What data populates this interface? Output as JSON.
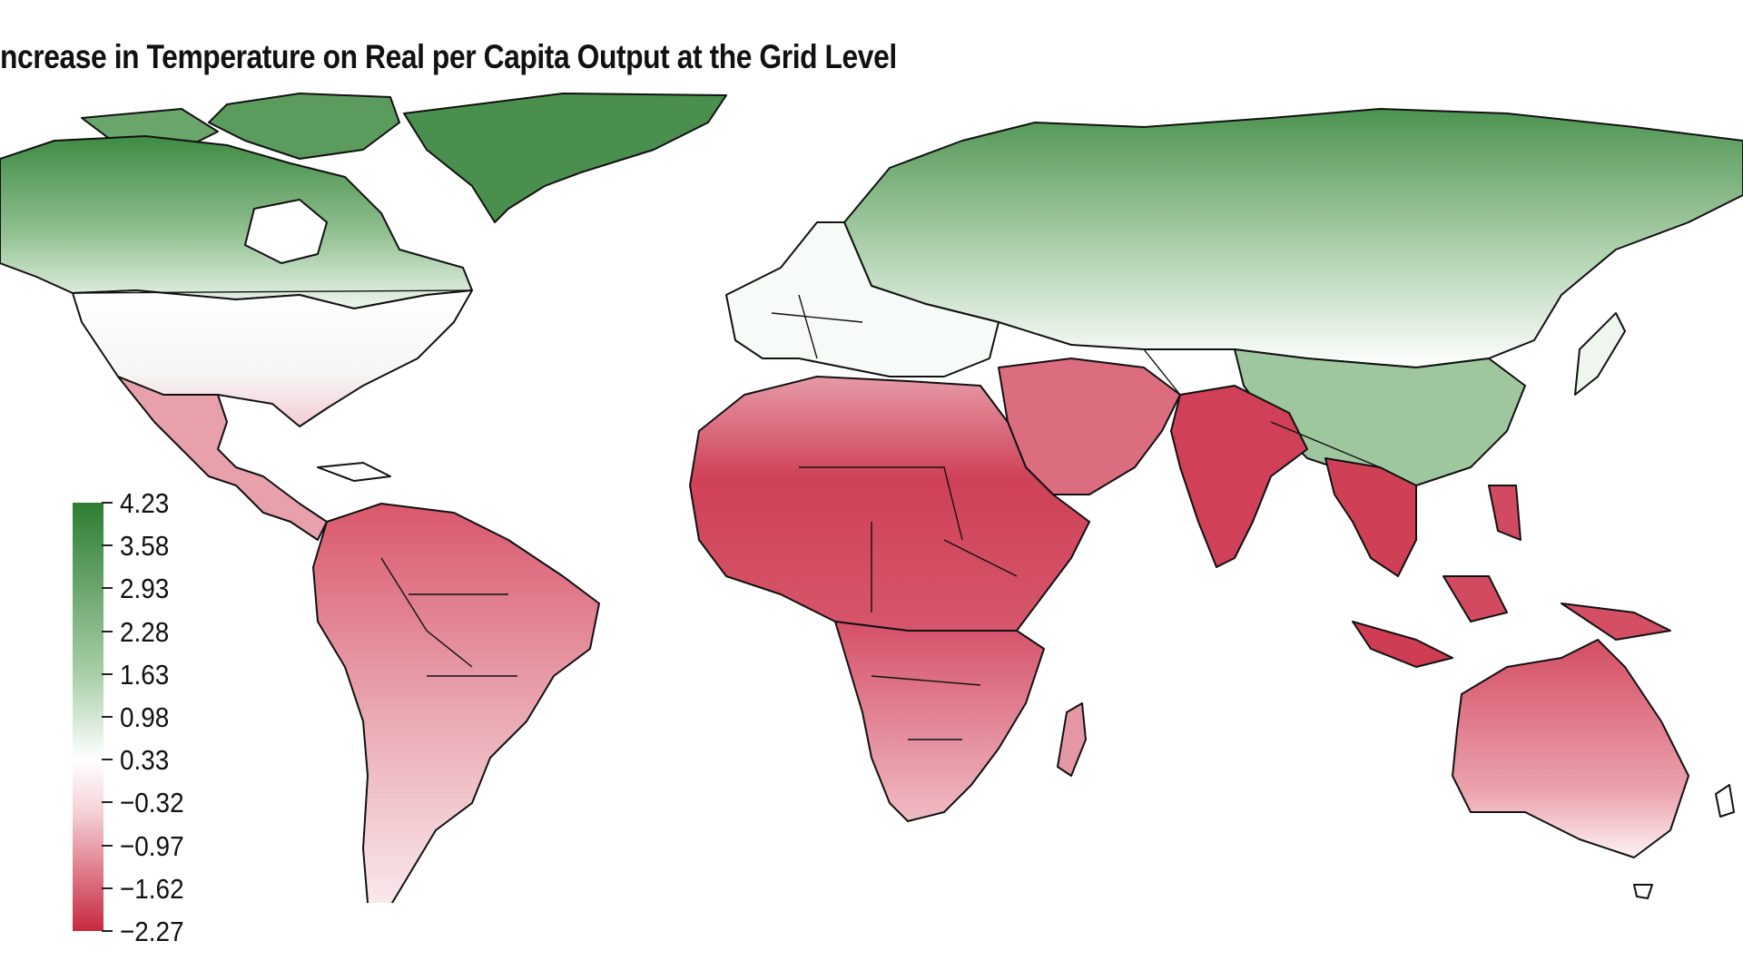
{
  "title": "ncrease in Temperature on Real per Capita Output at the Grid Level",
  "colors": {
    "high": "#2e7d32",
    "mid": "#ffffff",
    "low": "#c8283f",
    "border": "#111111"
  },
  "legend": {
    "ticks": [
      "4.23",
      "3.58",
      "2.93",
      "2.28",
      "1.63",
      "0.98",
      "0.33",
      "−0.32",
      "−0.97",
      "−1.62",
      "−2.27"
    ],
    "max": 4.23,
    "min": -2.27
  }
}
